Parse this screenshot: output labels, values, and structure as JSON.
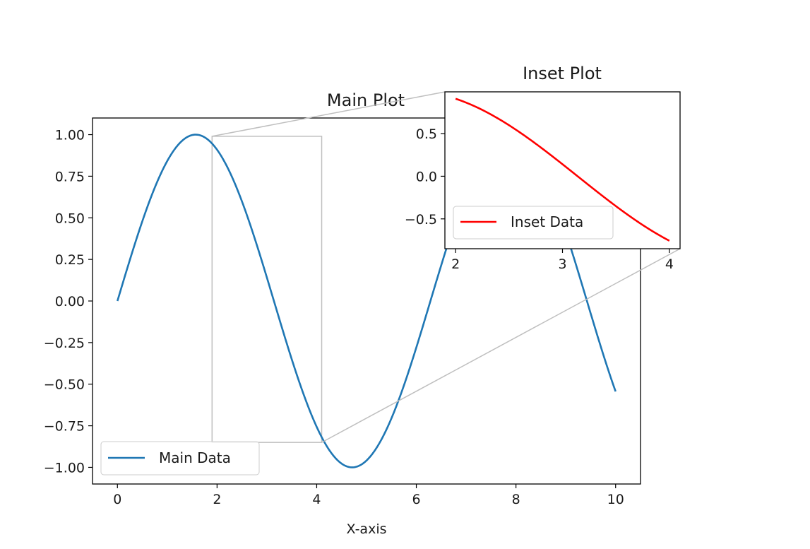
{
  "chart_data": [
    {
      "type": "line",
      "title": "Main Plot",
      "xlabel": "X-axis",
      "ylabel": "",
      "xlim": [
        -0.5,
        10.5
      ],
      "ylim": [
        -1.1,
        1.1
      ],
      "xticks": [
        0,
        2,
        4,
        6,
        8,
        10
      ],
      "yticks": [
        1.0,
        0.75,
        0.5,
        0.25,
        0.0,
        -0.25,
        -0.5,
        -0.75,
        -1.0
      ],
      "xtick_labels": [
        "0",
        "2",
        "4",
        "6",
        "8",
        "10"
      ],
      "ytick_labels": [
        "1.00",
        "0.75",
        "0.50",
        "0.25",
        "0.00",
        "−0.25",
        "−0.50",
        "−0.75",
        "−1.00"
      ],
      "grid": false,
      "legend_position": "lower-left",
      "series": [
        {
          "name": "Main Data",
          "color": "#1f77b4",
          "function": "sin(x)",
          "x": [
            0,
            0.5,
            1,
            1.5,
            2,
            2.5,
            3,
            3.5,
            4,
            4.5,
            5,
            5.5,
            6,
            6.5,
            7,
            7.5,
            8,
            8.5,
            9,
            9.5,
            10
          ],
          "y": [
            0,
            0.479,
            0.841,
            0.997,
            0.909,
            0.598,
            0.141,
            -0.351,
            -0.757,
            -0.978,
            -0.959,
            -0.706,
            -0.279,
            0.215,
            0.657,
            0.938,
            0.989,
            0.798,
            0.412,
            -0.075,
            -0.544
          ]
        }
      ],
      "zoom_region": {
        "x": [
          1.9,
          4.1
        ],
        "y": [
          -0.85,
          0.99
        ]
      }
    },
    {
      "type": "line",
      "title": "Inset Plot",
      "xlabel": "",
      "ylabel": "",
      "xlim": [
        1.9,
        4.1
      ],
      "ylim": [
        -0.85,
        0.99
      ],
      "xticks": [
        2,
        3,
        4
      ],
      "yticks": [
        0.5,
        0.0,
        -0.5
      ],
      "xtick_labels": [
        "2",
        "3",
        "4"
      ],
      "ytick_labels": [
        "0.5",
        "0.0",
        "−0.5"
      ],
      "grid": false,
      "legend_position": "lower-left",
      "series": [
        {
          "name": "Inset Data",
          "color": "#ff0000",
          "function": "sin(x)",
          "x": [
            2,
            2.25,
            2.5,
            2.75,
            3,
            3.25,
            3.5,
            3.75,
            4
          ],
          "y": [
            0.909,
            0.778,
            0.598,
            0.382,
            0.141,
            -0.108,
            -0.351,
            -0.572,
            -0.757
          ]
        }
      ]
    }
  ]
}
